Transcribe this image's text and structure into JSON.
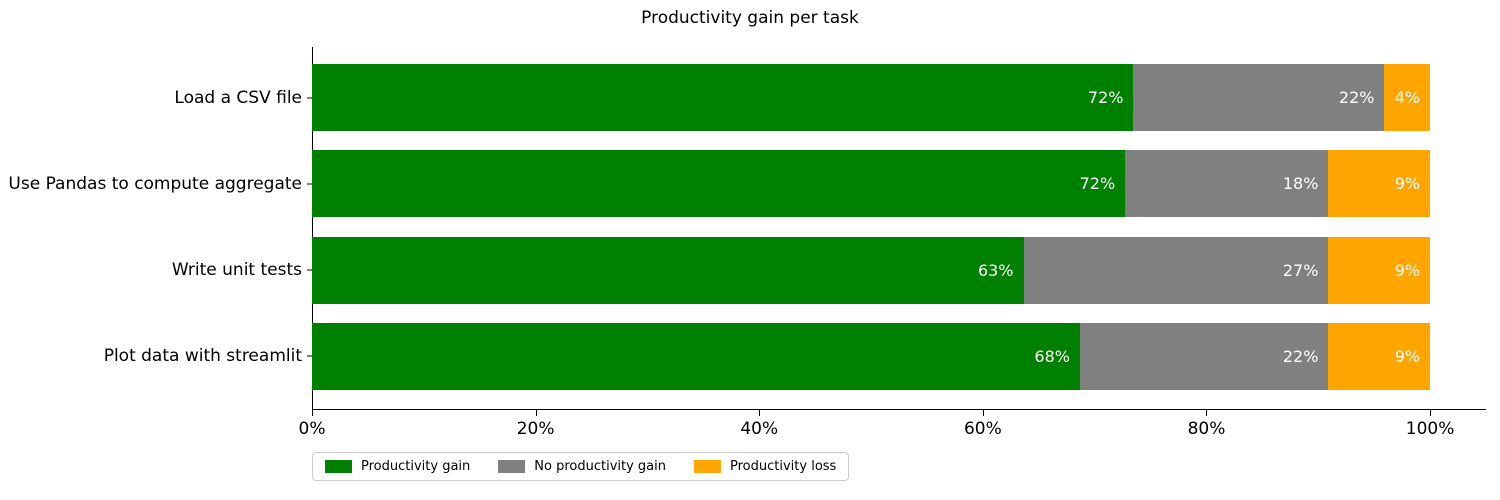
{
  "title": "Productivity gain per task",
  "chart_data": {
    "type": "bar",
    "orientation": "horizontal",
    "stacked": true,
    "title": "Productivity gain per task",
    "xlabel": "",
    "ylabel": "",
    "categories": [
      "Load a CSV file",
      "Use Pandas to compute aggregate",
      "Write unit tests",
      "Plot data with streamlit"
    ],
    "series": [
      {
        "name": "Productivity gain",
        "color": "#008000",
        "values": [
          72,
          72,
          63,
          68
        ]
      },
      {
        "name": "No productivity gain",
        "color": "#808080",
        "values": [
          22,
          18,
          27,
          22
        ]
      },
      {
        "name": "Productivity loss",
        "color": "#ffa500",
        "values": [
          4,
          9,
          9,
          9
        ]
      }
    ],
    "bar_labels": [
      [
        "72%",
        "22%",
        "4%"
      ],
      [
        "72%",
        "18%",
        "9%"
      ],
      [
        "63%",
        "27%",
        "9%"
      ],
      [
        "68%",
        "22%",
        "9%"
      ]
    ],
    "x_ticks": [
      {
        "label": "0%",
        "value": 0
      },
      {
        "label": "20%",
        "value": 20
      },
      {
        "label": "40%",
        "value": 40
      },
      {
        "label": "60%",
        "value": 60
      },
      {
        "label": "80%",
        "value": 80
      },
      {
        "label": "100%",
        "value": 100
      }
    ],
    "xlim": [
      0,
      105
    ],
    "grid": false,
    "legend": {
      "position": "bottom-left",
      "entries": [
        "Productivity gain",
        "No productivity gain",
        "Productivity loss"
      ]
    }
  },
  "colors": {
    "bar_label_text": "#ffffff",
    "axis": "#000000",
    "legend_border": "#cccccc",
    "background": "#ffffff"
  }
}
